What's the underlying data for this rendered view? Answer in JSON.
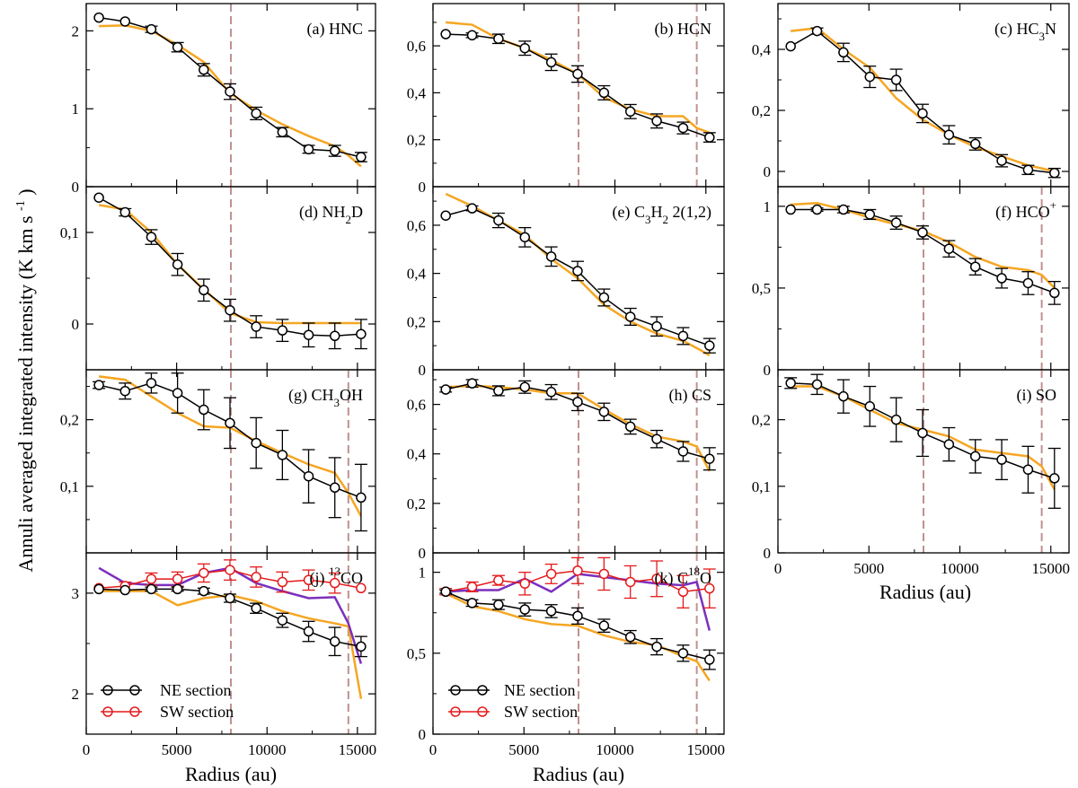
{
  "chart_data": {
    "type": "line",
    "ylabel": "Annuli averaged integrated intensity (K km s",
    "ylabel_sup": "-1",
    "ylabel_close": ")",
    "xlabel": "Radius (au)",
    "x_ticks": [
      0,
      5000,
      10000,
      15000
    ],
    "x_tick_labels": [
      "0",
      "5000",
      "10000",
      "15000"
    ],
    "xlim": [
      0,
      16000
    ],
    "radii": [
      700,
      2150,
      3600,
      5050,
      6500,
      7950,
      9400,
      10850,
      12300,
      13750,
      15200
    ],
    "model_radii": [
      700,
      2150,
      3600,
      5050,
      6500,
      7950,
      9400,
      10850,
      12300,
      13750,
      14500,
      15200
    ],
    "vertical_lines": [
      8000,
      14500
    ],
    "colors": {
      "ne": "#000000",
      "sw": "#e41a1c",
      "model_ne": "#f5a623",
      "model_sw": "#7b2fbe",
      "vline": "#c09090"
    },
    "legend": {
      "ne": "NE section",
      "sw": "SW section"
    },
    "panels": [
      {
        "id": "a",
        "title": "(a) HNC",
        "ylim": [
          0,
          2.35
        ],
        "yticks": [
          0,
          1,
          2
        ],
        "ytick_labels": [
          "0",
          "1",
          "2"
        ],
        "vlines": [
          8000
        ],
        "ne": [
          2.17,
          2.12,
          2.02,
          1.79,
          1.5,
          1.22,
          0.94,
          0.7,
          0.48,
          0.46,
          0.38
        ],
        "ne_err": [
          0,
          0,
          0.04,
          0.06,
          0.08,
          0.1,
          0.08,
          0.06,
          0.05,
          0.07,
          0.06
        ],
        "model_ne": [
          2.06,
          2.07,
          2.0,
          1.82,
          1.6,
          1.2,
          0.98,
          0.8,
          0.65,
          0.52,
          0.4,
          0.26
        ]
      },
      {
        "id": "b",
        "title": "(b) HCN",
        "ylim": [
          0,
          0.78
        ],
        "yticks": [
          0,
          0.2,
          0.4,
          0.6
        ],
        "ytick_labels": [
          "0",
          "0,2",
          "0,4",
          "0,6"
        ],
        "vlines": [
          8000,
          14500
        ],
        "ne": [
          0.65,
          0.645,
          0.63,
          0.59,
          0.53,
          0.48,
          0.4,
          0.32,
          0.28,
          0.25,
          0.21
        ],
        "ne_err": [
          0,
          0.01,
          0.02,
          0.03,
          0.035,
          0.035,
          0.03,
          0.03,
          0.03,
          0.025,
          0.02
        ],
        "model_ne": [
          0.7,
          0.69,
          0.63,
          0.59,
          0.54,
          0.48,
          0.38,
          0.33,
          0.3,
          0.3,
          0.25,
          0.23
        ]
      },
      {
        "id": "c",
        "title": "(c) HC",
        "title_sub": "3",
        "title_end": "N",
        "ylim": [
          -0.05,
          0.55
        ],
        "yticks": [
          0,
          0.2,
          0.4
        ],
        "ytick_labels": [
          "0",
          "0,2",
          "0,4"
        ],
        "vlines": [],
        "ne": [
          0.41,
          0.46,
          0.39,
          0.31,
          0.3,
          0.19,
          0.12,
          0.09,
          0.035,
          0.005,
          -0.005
        ],
        "ne_err": [
          0,
          0.01,
          0.03,
          0.035,
          0.035,
          0.03,
          0.03,
          0.02,
          0.02,
          0.015,
          0.015
        ],
        "model_ne": [
          0.46,
          0.47,
          0.4,
          0.34,
          0.24,
          0.17,
          0.12,
          0.08,
          0.05,
          0.02,
          0.01,
          0.0
        ]
      },
      {
        "id": "d",
        "title": "(d) NH",
        "title_sub": "2",
        "title_end": "D",
        "ylim": [
          -0.05,
          0.15
        ],
        "yticks": [
          0,
          0.1
        ],
        "ytick_labels": [
          "0",
          "0,1"
        ],
        "vlines": [
          8000
        ],
        "ne": [
          0.138,
          0.122,
          0.095,
          0.065,
          0.037,
          0.015,
          -0.003,
          -0.007,
          -0.012,
          -0.013,
          -0.011
        ],
        "ne_err": [
          0,
          0.004,
          0.008,
          0.012,
          0.012,
          0.012,
          0.012,
          0.012,
          0.013,
          0.014,
          0.016
        ],
        "model_ne": [
          0.13,
          0.125,
          0.1,
          0.065,
          0.038,
          0.012,
          0.002,
          0.001,
          0.001,
          0.001,
          0.001,
          0.001
        ]
      },
      {
        "id": "e",
        "title": "(e) C",
        "title_sub": "3",
        "title_mid": "H",
        "title_sub2": "2",
        "title_end": " 2(1,2)",
        "ylim": [
          0,
          0.76
        ],
        "yticks": [
          0,
          0.2,
          0.4,
          0.6
        ],
        "ytick_labels": [
          "0",
          "0,2",
          "0,4",
          "0,6"
        ],
        "vlines": [],
        "ne": [
          0.64,
          0.67,
          0.62,
          0.55,
          0.47,
          0.41,
          0.3,
          0.22,
          0.18,
          0.14,
          0.1
        ],
        "ne_err": [
          0,
          0.01,
          0.03,
          0.04,
          0.04,
          0.04,
          0.035,
          0.035,
          0.04,
          0.035,
          0.03
        ],
        "model_ne": [
          0.73,
          0.68,
          0.62,
          0.56,
          0.46,
          0.38,
          0.27,
          0.2,
          0.15,
          0.12,
          0.09,
          0.06
        ]
      },
      {
        "id": "f",
        "title": "(f) HCO",
        "title_sup": "+",
        "ylim": [
          0,
          1.12
        ],
        "yticks": [
          0,
          0.5,
          1
        ],
        "ytick_labels": [
          "0",
          "0,5",
          "1"
        ],
        "vlines": [
          8000,
          14500
        ],
        "ne": [
          0.98,
          0.98,
          0.98,
          0.95,
          0.9,
          0.84,
          0.74,
          0.63,
          0.56,
          0.53,
          0.47
        ],
        "ne_err": [
          0,
          0.01,
          0.02,
          0.03,
          0.04,
          0.04,
          0.05,
          0.05,
          0.06,
          0.07,
          0.07
        ],
        "model_ne": [
          1.01,
          1.02,
          0.98,
          0.93,
          0.89,
          0.85,
          0.78,
          0.69,
          0.63,
          0.61,
          0.58,
          0.5
        ]
      },
      {
        "id": "g",
        "title": "(g) CH",
        "title_sub": "3",
        "title_end": "OH",
        "ylim": [
          0,
          0.275
        ],
        "yticks": [
          0.1,
          0.2
        ],
        "ytick_labels": [
          "0,1",
          "0,2"
        ],
        "vlines": [
          8000,
          14500
        ],
        "ne": [
          0.252,
          0.243,
          0.255,
          0.24,
          0.215,
          0.195,
          0.165,
          0.147,
          0.115,
          0.098,
          0.083
        ],
        "ne_err": [
          0.005,
          0.012,
          0.015,
          0.03,
          0.03,
          0.038,
          0.038,
          0.037,
          0.04,
          0.045,
          0.05
        ],
        "model_ne": [
          0.265,
          0.26,
          0.235,
          0.21,
          0.19,
          0.188,
          0.168,
          0.15,
          0.133,
          0.12,
          0.09,
          0.055
        ]
      },
      {
        "id": "h",
        "title": "(h) CS",
        "ylim": [
          0,
          0.74
        ],
        "yticks": [
          0,
          0.2,
          0.4,
          0.6
        ],
        "ytick_labels": [
          "0",
          "0,2",
          "0,4",
          "0,6"
        ],
        "vlines": [
          8000,
          14500
        ],
        "ne": [
          0.66,
          0.685,
          0.655,
          0.67,
          0.65,
          0.61,
          0.57,
          0.51,
          0.46,
          0.41,
          0.38
        ],
        "ne_err": [
          0.01,
          0.015,
          0.02,
          0.025,
          0.03,
          0.035,
          0.035,
          0.03,
          0.035,
          0.04,
          0.045
        ],
        "model_ne": [
          0.67,
          0.675,
          0.67,
          0.66,
          0.645,
          0.645,
          0.58,
          0.52,
          0.47,
          0.45,
          0.43,
          0.33
        ]
      },
      {
        "id": "i",
        "title": "(i) SO",
        "ylim": [
          0,
          0.275
        ],
        "yticks": [
          0,
          0.1,
          0.2
        ],
        "ytick_labels": [
          "0",
          "0,1",
          "0,2"
        ],
        "vlines": [
          8000,
          14500
        ],
        "ne": [
          0.255,
          0.253,
          0.235,
          0.22,
          0.2,
          0.18,
          0.163,
          0.145,
          0.14,
          0.125,
          0.112
        ],
        "ne_err": [
          0.008,
          0.015,
          0.025,
          0.03,
          0.033,
          0.035,
          0.025,
          0.025,
          0.03,
          0.035,
          0.045
        ],
        "model_ne": [
          0.25,
          0.25,
          0.235,
          0.215,
          0.195,
          0.185,
          0.175,
          0.155,
          0.15,
          0.145,
          0.13,
          0.095
        ]
      },
      {
        "id": "j",
        "title": "(j) ",
        "title_sup": "13",
        "title_end": "CO",
        "ylim": [
          1.6,
          3.4
        ],
        "yticks": [
          2,
          3
        ],
        "ytick_labels": [
          "2",
          "3"
        ],
        "vlines": [
          8000,
          14500
        ],
        "ne": [
          3.04,
          3.03,
          3.04,
          3.04,
          3.02,
          2.95,
          2.85,
          2.73,
          2.62,
          2.52,
          2.47
        ],
        "ne_err": [
          0,
          0,
          0.02,
          0.02,
          0.03,
          0.04,
          0.05,
          0.07,
          0.1,
          0.14,
          0.1
        ],
        "sw": [
          3.05,
          3.07,
          3.14,
          3.14,
          3.2,
          3.23,
          3.16,
          3.11,
          3.13,
          3.1,
          3.05
        ],
        "sw_err": [
          0,
          0.04,
          0.06,
          0.07,
          0.09,
          0.1,
          0.1,
          0.1,
          0.1,
          0.1,
          0
        ],
        "model_ne": [
          3.02,
          3.02,
          3.02,
          2.88,
          2.95,
          2.98,
          2.92,
          2.82,
          2.75,
          2.7,
          2.67,
          1.95
        ],
        "model_sw": [
          3.25,
          3.1,
          3.08,
          3.08,
          3.2,
          3.25,
          3.1,
          3.02,
          2.95,
          2.96,
          2.7,
          2.3
        ]
      },
      {
        "id": "k",
        "title": "(k) C",
        "title_sup": "18",
        "title_end": "O",
        "ylim": [
          0,
          1.12
        ],
        "yticks": [
          0,
          0.5,
          1
        ],
        "ytick_labels": [
          "0",
          "0,5",
          "1"
        ],
        "vlines": [
          8000,
          14500
        ],
        "ne": [
          0.88,
          0.81,
          0.8,
          0.77,
          0.76,
          0.73,
          0.67,
          0.6,
          0.54,
          0.5,
          0.46
        ],
        "ne_err": [
          0.01,
          0.02,
          0.03,
          0.04,
          0.04,
          0.05,
          0.04,
          0.04,
          0.05,
          0.05,
          0.06
        ],
        "sw": [
          0.88,
          0.91,
          0.95,
          0.93,
          0.99,
          1.01,
          0.99,
          0.94,
          0.96,
          0.88,
          0.9
        ],
        "sw_err": [
          0.02,
          0.03,
          0.03,
          0.07,
          0.06,
          0.08,
          0.1,
          0.1,
          0.11,
          0.1,
          0.12
        ],
        "model_ne": [
          0.87,
          0.79,
          0.76,
          0.71,
          0.68,
          0.67,
          0.61,
          0.57,
          0.55,
          0.48,
          0.45,
          0.33
        ],
        "model_sw": [
          0.88,
          0.89,
          0.89,
          0.96,
          0.88,
          0.99,
          0.97,
          0.95,
          0.93,
          0.92,
          0.94,
          0.64
        ]
      }
    ]
  }
}
